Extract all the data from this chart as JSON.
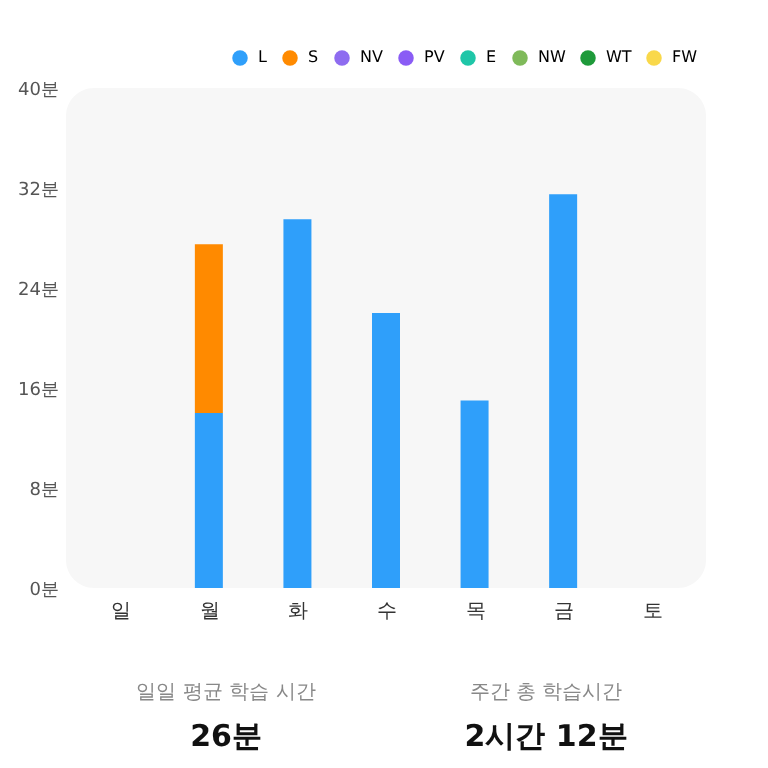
{
  "chart_data": {
    "type": "bar",
    "stacked": true,
    "categories": [
      "일",
      "월",
      "화",
      "수",
      "목",
      "금",
      "토"
    ],
    "series": [
      {
        "name": "L",
        "color": "#2f9ffa",
        "values": [
          null,
          14,
          29.5,
          22,
          15,
          31.5,
          null
        ]
      },
      {
        "name": "S",
        "color": "#ff8a00",
        "values": [
          null,
          13.5,
          null,
          null,
          null,
          null,
          null
        ]
      },
      {
        "name": "NV",
        "color": "#8e6cf0",
        "values": [
          null,
          null,
          null,
          null,
          null,
          null,
          null
        ]
      },
      {
        "name": "PV",
        "color": "#8a5cf5",
        "values": [
          null,
          null,
          null,
          null,
          null,
          null,
          null
        ]
      },
      {
        "name": "E",
        "color": "#1fc6a8",
        "values": [
          null,
          null,
          null,
          null,
          null,
          null,
          null
        ]
      },
      {
        "name": "NW",
        "color": "#7fba5a",
        "values": [
          null,
          null,
          null,
          null,
          null,
          null,
          null
        ]
      },
      {
        "name": "WT",
        "color": "#1e9a3a",
        "values": [
          null,
          null,
          null,
          null,
          null,
          null,
          null
        ]
      },
      {
        "name": "FW",
        "color": "#f9d84a",
        "values": [
          null,
          null,
          null,
          null,
          null,
          null,
          null
        ]
      }
    ],
    "ylim": [
      0,
      40
    ],
    "yticks": [
      {
        "value": 0,
        "label": "0분"
      },
      {
        "value": 8,
        "label": "8분"
      },
      {
        "value": 16,
        "label": "16분"
      },
      {
        "value": 24,
        "label": "24분"
      },
      {
        "value": 32,
        "label": "32분"
      },
      {
        "value": 40,
        "label": "40분"
      }
    ],
    "grid": false,
    "legend": "top right",
    "annotations": [
      "일일 평균 학습 시간",
      "26분",
      "주간 총 학습시간",
      "2시간 12분"
    ]
  }
}
